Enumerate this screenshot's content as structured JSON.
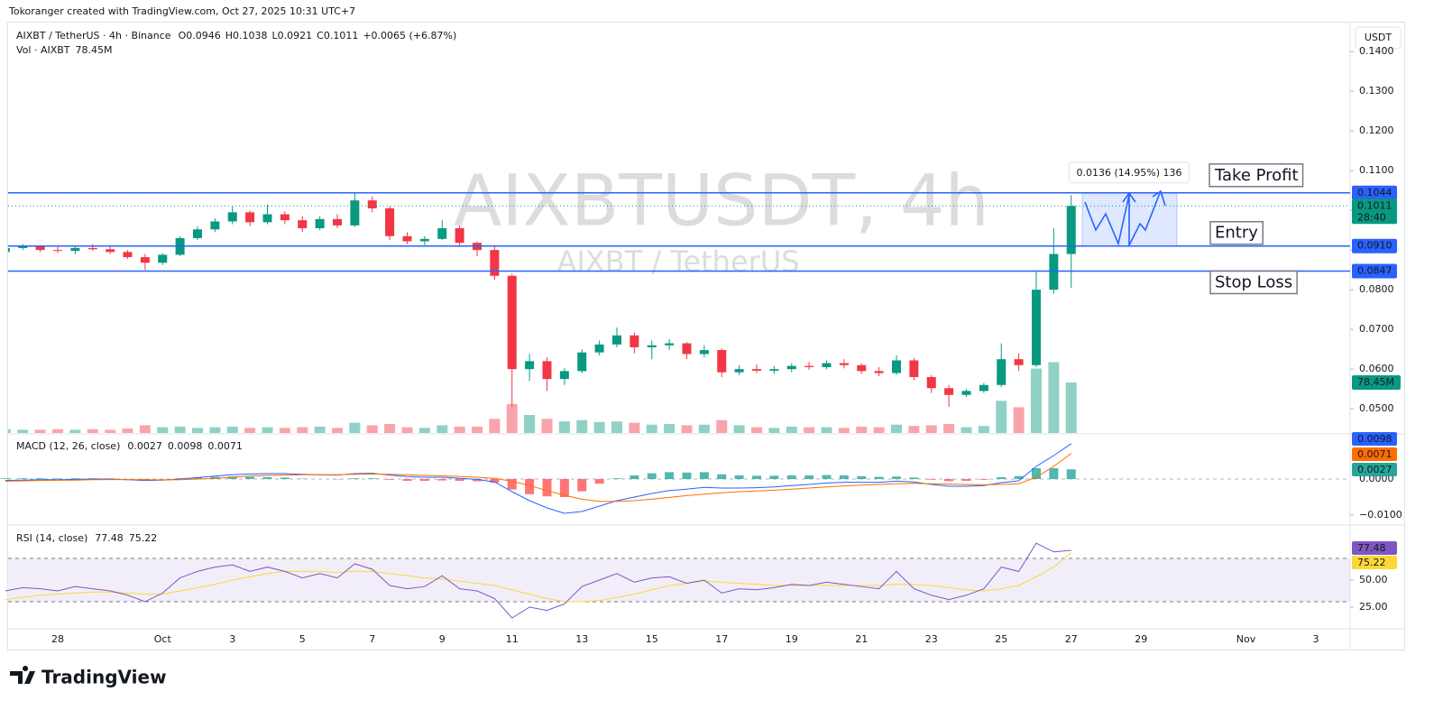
{
  "header": {
    "attribution": "Tokoranger created with TradingView.com, Oct 27, 2025 10:31 UTC+7",
    "symbol": "AIXBT / TetherUS · 4h · Binance",
    "ohlc": [
      {
        "key": "O",
        "value": "0.0946"
      },
      {
        "key": "H",
        "value": "0.1038"
      },
      {
        "key": "L",
        "value": "0.0921"
      },
      {
        "key": "C",
        "value": "0.1011"
      }
    ],
    "change": "+0.0065 (+6.87%)",
    "volume_name": "Vol · AIXBT",
    "volume_value": "78.45M",
    "currency": "USDT"
  },
  "chart_data": {
    "type": "candlestick",
    "watermark": "AIXBTUSDT, 4h",
    "watermark_sub": "AIXBT / TetherUS",
    "categories": [
      null,
      null,
      null,
      "28",
      null,
      null,
      null,
      null,
      null,
      "Oct",
      null,
      null,
      null,
      "3",
      null,
      null,
      null,
      "5",
      null,
      null,
      null,
      "7",
      null,
      null,
      null,
      "9",
      null,
      null,
      null,
      "11",
      null,
      null,
      null,
      "13",
      null,
      null,
      null,
      "15",
      null,
      null,
      null,
      "17",
      null,
      null,
      null,
      "19",
      null,
      null,
      null,
      "21",
      null,
      null,
      null,
      "23",
      null,
      null,
      null,
      "25",
      null,
      null,
      null,
      "27",
      null,
      null,
      null,
      "29",
      null,
      null,
      null,
      null,
      null,
      "Nov",
      null,
      null,
      null,
      "3",
      null,
      null
    ],
    "open": [
      0.0895,
      0.0905,
      0.091,
      0.09,
      0.0898,
      0.0905,
      0.0902,
      0.0895,
      0.0882,
      0.0868,
      0.0888,
      0.093,
      0.0952,
      0.0972,
      0.0995,
      0.097,
      0.099,
      0.0975,
      0.0955,
      0.0978,
      0.0962,
      0.1025,
      0.1005,
      0.0935,
      0.0922,
      0.0928,
      0.0955,
      0.0918,
      0.09,
      0.0835,
      0.06,
      0.062,
      0.0575,
      0.0595,
      0.0642,
      0.0662,
      0.0685,
      0.0655,
      0.066,
      0.0665,
      0.0638,
      0.0648,
      0.0592,
      0.06,
      0.0596,
      0.06,
      0.0608,
      0.0605,
      0.0615,
      0.061,
      0.0595,
      0.059,
      0.0622,
      0.058,
      0.0552,
      0.0535,
      0.0545,
      0.056,
      0.0625,
      0.061,
      0.08,
      0.089,
      null,
      null,
      null,
      null,
      null,
      null,
      null,
      null,
      null,
      null,
      null,
      null,
      null,
      null,
      null,
      null
    ],
    "high": [
      0.091,
      0.0915,
      0.0912,
      0.0908,
      0.091,
      0.0915,
      0.0908,
      0.09,
      0.089,
      0.0892,
      0.0935,
      0.096,
      0.098,
      0.101,
      0.1,
      0.1015,
      0.0998,
      0.0985,
      0.0985,
      0.099,
      0.1044,
      0.1035,
      0.101,
      0.0945,
      0.0935,
      0.0975,
      0.0962,
      0.0922,
      0.0912,
      0.084,
      0.0638,
      0.063,
      0.0602,
      0.065,
      0.0672,
      0.0705,
      0.0692,
      0.0672,
      0.0675,
      0.0668,
      0.066,
      0.0652,
      0.061,
      0.0612,
      0.0608,
      0.0615,
      0.0618,
      0.0622,
      0.0625,
      0.0615,
      0.0605,
      0.0635,
      0.0628,
      0.0585,
      0.056,
      0.055,
      0.0565,
      0.0665,
      0.064,
      0.0845,
      0.0955,
      0.1038,
      null,
      null,
      null,
      null,
      null,
      null,
      null,
      null,
      null,
      null,
      null,
      null,
      null,
      null,
      null,
      null
    ],
    "low": [
      0.0885,
      0.09,
      0.0895,
      0.0892,
      0.089,
      0.0898,
      0.089,
      0.0878,
      0.085,
      0.0862,
      0.0885,
      0.0925,
      0.0945,
      0.0965,
      0.096,
      0.0965,
      0.0965,
      0.0945,
      0.095,
      0.0955,
      0.0958,
      0.0995,
      0.0925,
      0.0915,
      0.0912,
      0.0925,
      0.091,
      0.0885,
      0.0825,
      0.0505,
      0.057,
      0.0545,
      0.056,
      0.059,
      0.0635,
      0.0655,
      0.064,
      0.0625,
      0.0648,
      0.0625,
      0.063,
      0.058,
      0.0585,
      0.059,
      0.0588,
      0.0592,
      0.0598,
      0.06,
      0.0602,
      0.0588,
      0.0582,
      0.0585,
      0.0572,
      0.054,
      0.0505,
      0.053,
      0.054,
      0.0555,
      0.0595,
      0.0605,
      0.079,
      0.0805,
      null,
      null,
      null,
      null,
      null,
      null,
      null,
      null,
      null,
      null,
      null,
      null,
      null,
      null,
      null,
      null
    ],
    "close": [
      0.0905,
      0.091,
      0.09,
      0.0898,
      0.0905,
      0.0902,
      0.0895,
      0.0882,
      0.0868,
      0.0888,
      0.093,
      0.0952,
      0.0972,
      0.0995,
      0.097,
      0.099,
      0.0975,
      0.0955,
      0.0978,
      0.0962,
      0.1025,
      0.1005,
      0.0935,
      0.0922,
      0.0928,
      0.0955,
      0.0918,
      0.09,
      0.0835,
      0.06,
      0.062,
      0.0575,
      0.0595,
      0.0642,
      0.0662,
      0.0685,
      0.0655,
      0.066,
      0.0665,
      0.0638,
      0.0648,
      0.0592,
      0.06,
      0.0596,
      0.06,
      0.0608,
      0.0605,
      0.0615,
      0.061,
      0.0595,
      0.059,
      0.0622,
      0.058,
      0.0552,
      0.0535,
      0.0545,
      0.056,
      0.0625,
      0.061,
      0.08,
      0.089,
      0.1011,
      null,
      null,
      null,
      null,
      null,
      null,
      null,
      null,
      null,
      null,
      null,
      null,
      null,
      null,
      null,
      null
    ],
    "volume": [
      6,
      5,
      5,
      6,
      5,
      6,
      5,
      7,
      12,
      9,
      10,
      8,
      9,
      10,
      8,
      9,
      8,
      9,
      10,
      8,
      16,
      12,
      14,
      9,
      8,
      12,
      10,
      10,
      22,
      45,
      28,
      22,
      18,
      20,
      17,
      18,
      16,
      13,
      14,
      12,
      13,
      20,
      12,
      9,
      8,
      10,
      9,
      9,
      8,
      10,
      9,
      13,
      11,
      12,
      14,
      9,
      11,
      50,
      40,
      100,
      110,
      78.45,
      null,
      null,
      null,
      null,
      null,
      null,
      null,
      null,
      null,
      null,
      null,
      null,
      null,
      null,
      null,
      null
    ],
    "colors": {
      "up": "#089981",
      "down": "#f23645",
      "level": "#2962ff",
      "label": "#f23645"
    },
    "ylim": [
      0.0439,
      0.1473
    ],
    "yticks": [
      {
        "value": 0.05,
        "label": "0.0500"
      },
      {
        "value": 0.06,
        "label": "0.0600"
      },
      {
        "value": 0.07,
        "label": "0.0700"
      },
      {
        "value": 0.08,
        "label": "0.0800"
      },
      {
        "value": 0.09,
        "label": "0.0900"
      },
      {
        "value": 0.1,
        "label": "0.1000"
      },
      {
        "value": 0.11,
        "label": "0.1100"
      },
      {
        "value": 0.12,
        "label": "0.1200"
      },
      {
        "value": 0.13,
        "label": "0.1300"
      },
      {
        "value": 0.14,
        "label": "0.1400"
      }
    ],
    "vol_lim": [
      0,
      140
    ],
    "countdown": "28:40",
    "grid": false,
    "levels": [
      {
        "name": "Take Profit",
        "value": 0.1044,
        "label": "0.1044"
      },
      {
        "name": "Entry",
        "value": 0.091,
        "label": "0.0910"
      },
      {
        "name": "Stop Loss",
        "value": 0.0847,
        "label": "0.0847"
      }
    ],
    "position": {
      "label": "0.0136 (14.95%) 136"
    },
    "macd": {
      "title": "MACD (12, 26, close)",
      "macd": [
        -0.0004,
        -0.0003,
        -0.0002,
        -0.0002,
        -0.0001,
        0,
        0,
        -0.0002,
        -0.0004,
        -0.0003,
        0,
        0.0004,
        0.0008,
        0.0012,
        0.0014,
        0.0015,
        0.0015,
        0.0013,
        0.0012,
        0.0011,
        0.0015,
        0.0016,
        0.0011,
        0.0007,
        0.0005,
        0.0005,
        0.0002,
        -0.0001,
        -0.0008,
        -0.0035,
        -0.006,
        -0.008,
        -0.0095,
        -0.009,
        -0.0075,
        -0.006,
        -0.005,
        -0.004,
        -0.0032,
        -0.0028,
        -0.0023,
        -0.0025,
        -0.0025,
        -0.0024,
        -0.0022,
        -0.0018,
        -0.0015,
        -0.0011,
        -0.0009,
        -0.0009,
        -0.0009,
        -0.0006,
        -0.0008,
        -0.0015,
        -0.002,
        -0.002,
        -0.0018,
        -0.001,
        -0.0005,
        0.0035,
        0.0065,
        0.0098,
        null,
        null,
        null,
        null,
        null,
        null,
        null,
        null,
        null,
        null,
        null,
        null,
        null,
        null,
        null,
        null
      ],
      "signal": [
        -0.0006,
        -0.0005,
        -0.0004,
        -0.00035,
        -0.0003,
        -0.0002,
        -0.00015,
        -0.00015,
        -0.0002,
        -0.00025,
        -0.0002,
        0,
        0.0002,
        0.0005,
        0.0008,
        0.001,
        0.0011,
        0.0012,
        0.0012,
        0.0012,
        0.0013,
        0.0014,
        0.0013,
        0.0012,
        0.001,
        0.0009,
        0.0007,
        0.0005,
        0.0002,
        -0.0006,
        -0.0018,
        -0.0032,
        -0.0045,
        -0.0056,
        -0.0062,
        -0.0062,
        -0.006,
        -0.0056,
        -0.0051,
        -0.0046,
        -0.0042,
        -0.0038,
        -0.0035,
        -0.0033,
        -0.0031,
        -0.0028,
        -0.0025,
        -0.0022,
        -0.0019,
        -0.0017,
        -0.0015,
        -0.0013,
        -0.0012,
        -0.0013,
        -0.0014,
        -0.0015,
        -0.0016,
        -0.0015,
        -0.0013,
        0.0005,
        0.0035,
        0.0071,
        null,
        null,
        null,
        null,
        null,
        null,
        null,
        null,
        null,
        null,
        null,
        null,
        null,
        null,
        null,
        null
      ],
      "hist": [
        0.0002,
        0.0002,
        0.0002,
        0.00015,
        0.0002,
        0.0002,
        0.00015,
        -5e-05,
        -0.0002,
        -5e-05,
        0.0002,
        0.0004,
        0.0006,
        0.0007,
        0.0006,
        0.0005,
        0.0004,
        0.0001,
        0,
        -0.0001,
        0.0002,
        0.0002,
        -0.0002,
        -0.0005,
        -0.0005,
        -0.0004,
        -0.0005,
        -0.0006,
        -0.001,
        -0.0029,
        -0.0042,
        -0.0048,
        -0.005,
        -0.0034,
        -0.0013,
        0.0002,
        0.001,
        0.0016,
        0.0019,
        0.0018,
        0.0019,
        0.0013,
        0.001,
        0.0009,
        0.0009,
        0.001,
        0.001,
        0.0011,
        0.001,
        0.0008,
        0.0006,
        0.0007,
        0.0004,
        -0.0002,
        -0.0006,
        -0.0005,
        -0.0002,
        0.0005,
        0.0008,
        0.003,
        0.003,
        0.0027,
        null,
        null,
        null,
        null,
        null,
        null,
        null,
        null,
        null,
        null,
        null,
        null,
        null,
        null,
        null,
        null
      ],
      "colors": {
        "macd": "#2962ff",
        "signal": "#ff6d00",
        "up": "#26a69a",
        "down": "#ff5252"
      },
      "ylim": [
        -0.01225,
        0.012
      ],
      "yticks": [
        {
          "value": 0,
          "label": "0.0000"
        },
        {
          "value": -0.01,
          "label": "−0.0100"
        }
      ]
    },
    "rsi": {
      "title": "RSI (14, close)",
      "rsi": [
        40,
        43,
        42,
        40,
        44,
        42,
        40,
        36,
        30,
        38,
        52,
        58,
        62,
        64,
        58,
        62,
        58,
        52,
        56,
        52,
        65,
        60,
        45,
        42,
        44,
        54,
        42,
        40,
        33,
        15,
        25,
        22,
        28,
        44,
        50,
        56,
        48,
        52,
        53,
        47,
        50,
        38,
        42,
        41,
        43,
        46,
        45,
        48,
        46,
        44,
        42,
        58,
        42,
        36,
        32,
        36,
        42,
        62,
        58,
        84,
        76,
        77.48,
        null,
        null,
        null,
        null,
        null,
        null,
        null,
        null,
        null,
        null,
        null,
        null,
        null,
        null,
        null,
        null
      ],
      "ma": [
        32,
        34,
        36,
        37,
        38,
        39,
        39,
        38,
        37,
        37,
        40,
        43,
        46,
        50,
        53,
        56,
        58,
        58,
        58,
        57,
        58,
        58,
        56,
        54,
        52,
        51,
        49,
        47,
        45,
        41,
        37,
        33,
        30,
        30,
        31,
        34,
        37,
        41,
        45,
        47,
        49,
        48,
        47,
        46,
        45,
        45,
        45,
        45,
        45,
        45,
        45,
        46,
        46,
        45,
        43,
        41,
        40,
        42,
        45,
        53,
        62,
        75.22,
        null,
        null,
        null,
        null,
        null,
        null,
        null,
        null,
        null,
        null,
        null,
        null,
        null,
        null,
        null,
        null
      ],
      "colors": {
        "rsi": "#7e57c2",
        "ma": "#fdd835"
      },
      "ylim": [
        6.67,
        98.3
      ],
      "yticks": [
        {
          "value": 50,
          "label": "50.00"
        },
        {
          "value": 25,
          "label": "25.00"
        }
      ],
      "bands": [
        30,
        70
      ]
    }
  },
  "branding": "TradingView"
}
